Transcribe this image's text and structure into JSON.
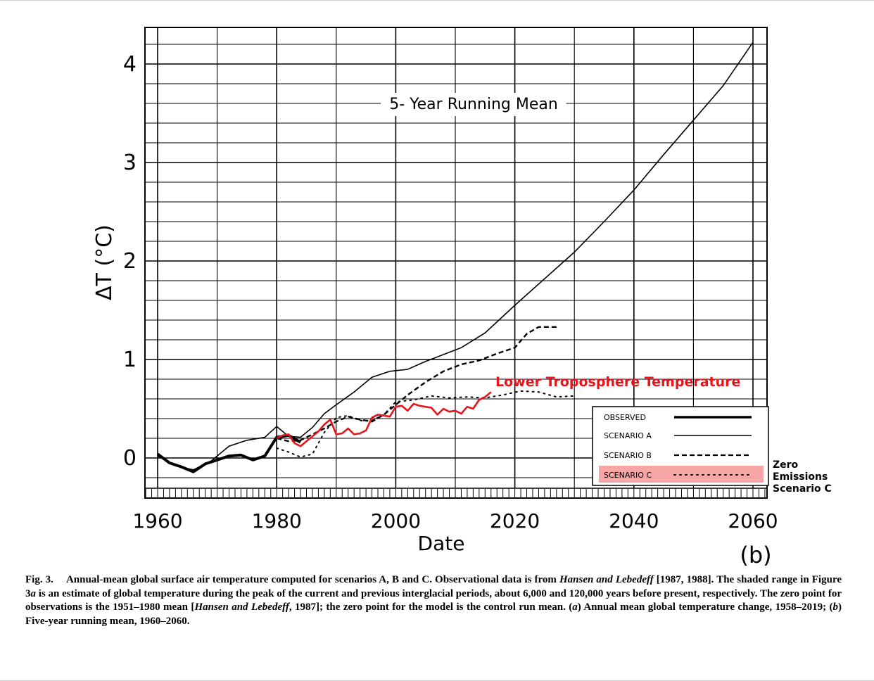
{
  "chart_data": {
    "type": "line",
    "title": "5- Year Running Mean",
    "xlabel": "Date",
    "ylabel": "ΔT (°C)",
    "panel_label": "(b)",
    "xlim": [
      1960,
      2060
    ],
    "ylim": [
      -0.4,
      4.4
    ],
    "x_ticks": [
      1960,
      1980,
      2000,
      2020,
      2040,
      2060
    ],
    "x_tick_labels": [
      "1960",
      "1980",
      "2000",
      "2020",
      "2040",
      "2060"
    ],
    "y_ticks": [
      0,
      1,
      2,
      3,
      4
    ],
    "y_tick_labels": [
      "0",
      "1",
      "2",
      "3",
      "4"
    ],
    "grid": true,
    "legend_position": "bottom-right",
    "legend": [
      "OBSERVED",
      "SCENARIO A",
      "SCENARIO B",
      "SCENARIO C"
    ],
    "series": [
      {
        "name": "OBSERVED",
        "style": "thick-solid",
        "x": [
          1960,
          1962,
          1964,
          1966,
          1968,
          1970,
          1972,
          1974,
          1976,
          1978,
          1980,
          1982,
          1984
        ],
        "values": [
          0.04,
          -0.05,
          -0.09,
          -0.14,
          -0.06,
          -0.02,
          0.02,
          0.03,
          -0.02,
          0.02,
          0.21,
          0.23,
          0.16
        ]
      },
      {
        "name": "SCENARIO A",
        "style": "thin-solid",
        "x": [
          1960,
          1963,
          1966,
          1969,
          1972,
          1975,
          1978,
          1980,
          1982,
          1984,
          1986,
          1988,
          1990,
          1993,
          1996,
          1999,
          2002,
          2005,
          2008,
          2011,
          2015,
          2020,
          2025,
          2030,
          2035,
          2040,
          2045,
          2050,
          2055,
          2060
        ],
        "values": [
          0.02,
          -0.08,
          -0.12,
          -0.03,
          0.12,
          0.18,
          0.21,
          0.32,
          0.22,
          0.21,
          0.31,
          0.45,
          0.54,
          0.67,
          0.82,
          0.88,
          0.9,
          0.98,
          1.05,
          1.12,
          1.27,
          1.55,
          1.82,
          2.09,
          2.4,
          2.72,
          3.08,
          3.43,
          3.78,
          4.22
        ]
      },
      {
        "name": "SCENARIO B",
        "style": "dashed",
        "x": [
          1980,
          1982,
          1984,
          1986,
          1988,
          1990,
          1992,
          1994,
          1996,
          1998,
          2000,
          2002,
          2005,
          2008,
          2011,
          2014,
          2017,
          2020,
          2022,
          2024,
          2027
        ],
        "values": [
          0.2,
          0.17,
          0.18,
          0.24,
          0.3,
          0.37,
          0.42,
          0.39,
          0.37,
          0.44,
          0.54,
          0.64,
          0.77,
          0.88,
          0.95,
          0.99,
          1.06,
          1.12,
          1.26,
          1.33,
          1.33
        ]
      },
      {
        "name": "SCENARIO C",
        "style": "dotted",
        "x": [
          1980,
          1982,
          1984,
          1986,
          1988,
          1990,
          1992,
          1994,
          1996,
          1998,
          2000,
          2003,
          2006,
          2009,
          2012,
          2015,
          2018,
          2021,
          2024,
          2027,
          2030
        ],
        "values": [
          0.1,
          0.06,
          0.01,
          0.04,
          0.26,
          0.41,
          0.43,
          0.38,
          0.38,
          0.44,
          0.57,
          0.59,
          0.63,
          0.61,
          0.62,
          0.61,
          0.64,
          0.68,
          0.67,
          0.62,
          0.63
        ]
      }
    ],
    "overlay": {
      "label": "Lower Troposphere Temperature",
      "color": "#e8141c",
      "x": [
        1980,
        1981,
        1982,
        1983,
        1984,
        1985,
        1986,
        1987,
        1988,
        1989,
        1990,
        1991,
        1992,
        1993,
        1994,
        1995,
        1996,
        1997,
        1998,
        1999,
        2000,
        2001,
        2002,
        2003,
        2004,
        2005,
        2006,
        2007,
        2008,
        2009,
        2010,
        2011,
        2012,
        2013,
        2014,
        2015,
        2016
      ],
      "values": [
        0.2,
        0.23,
        0.24,
        0.15,
        0.12,
        0.17,
        0.22,
        0.27,
        0.34,
        0.39,
        0.24,
        0.25,
        0.3,
        0.24,
        0.25,
        0.28,
        0.41,
        0.44,
        0.43,
        0.42,
        0.52,
        0.53,
        0.48,
        0.55,
        0.53,
        0.52,
        0.51,
        0.44,
        0.5,
        0.47,
        0.48,
        0.45,
        0.52,
        0.5,
        0.59,
        0.62,
        0.67
      ]
    },
    "annotation": {
      "text_lines": [
        "Zero",
        "Emissions",
        "Scenario C"
      ],
      "highlight_color": "#f7a6a6"
    }
  },
  "caption": {
    "label": "Fig. 3.",
    "text_1": "Annual-mean global surface air temperature computed for scenarios A, B and C.  Observational data is from ",
    "cite_1": "Hansen and Lebedeff",
    "text_2": " [1987, 1988].  The shaded range in Figure 3",
    "panel_a_ref": "a",
    "text_3": " is an estimate of global temperature during the peak of the current and previous interglacial periods, about 6,000 and 120,000 years before present, respectively.  The zero point for observations is the 1951–1980 mean [",
    "cite_2": "Hansen and Lebedeff",
    "text_4": ", 1987]; the zero point for the model is the control run mean. (",
    "panel_a": "a",
    "text_5": ") Annual mean global temperature change, 1958–2019; (",
    "panel_b": "b",
    "text_6": ") Five-year running mean, 1960–2060."
  }
}
